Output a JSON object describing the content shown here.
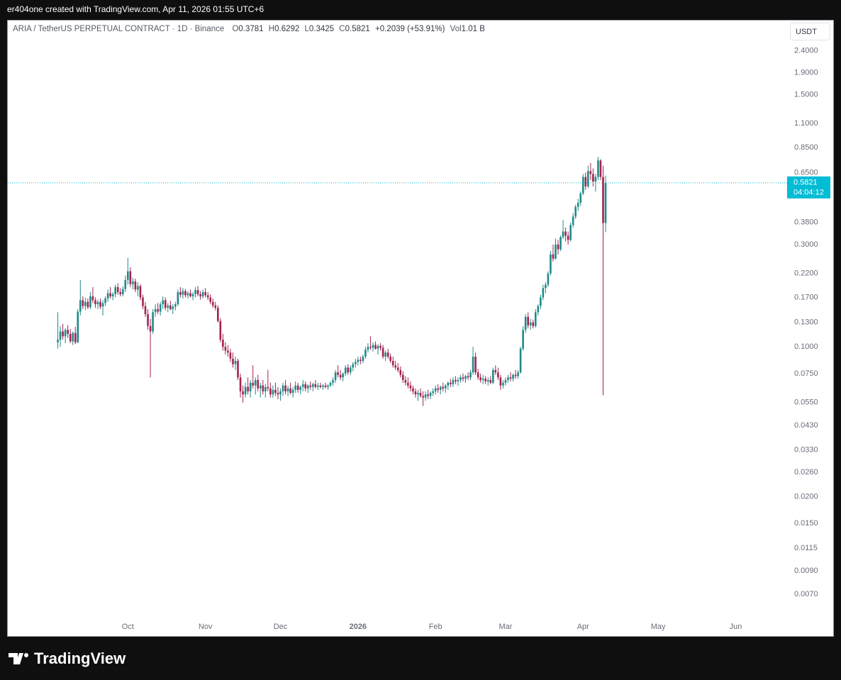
{
  "attribution": "er404one created with TradingView.com, Apr 11, 2026 01:55 UTC+6",
  "footer": {
    "brand": "TradingView"
  },
  "chart_data": {
    "type": "candlestick",
    "title": "ARIA / TetherUS PERPETUAL CONTRACT · 1D · Binance",
    "legend_labels": {
      "open": "O",
      "high": "H",
      "low": "L",
      "close": "C",
      "volume": "Vol"
    },
    "change": "+0.2039 (+53.91%)",
    "volume": "1.01 B",
    "currency": "USDT",
    "countdown": "04:04:12",
    "log_scale": true,
    "grid": false,
    "up_color": "#1f8a8a",
    "down_color": "#a3224f",
    "last_price_color": "#00bcd4",
    "ylim": [
      0.0055,
      3.3
    ],
    "yticks": [
      {
        "value": 2.4,
        "label": "2.4000"
      },
      {
        "value": 1.9,
        "label": "1.9000"
      },
      {
        "value": 1.5,
        "label": "1.5000"
      },
      {
        "value": 1.1,
        "label": "1.1000"
      },
      {
        "value": 0.85,
        "label": "0.8500"
      },
      {
        "value": 0.65,
        "label": "0.6500"
      },
      {
        "value": 0.38,
        "label": "0.3800"
      },
      {
        "value": 0.3,
        "label": "0.3000"
      },
      {
        "value": 0.22,
        "label": "0.2200"
      },
      {
        "value": 0.17,
        "label": "0.1700"
      },
      {
        "value": 0.13,
        "label": "0.1300"
      },
      {
        "value": 0.1,
        "label": "0.1000"
      },
      {
        "value": 0.075,
        "label": "0.0750"
      },
      {
        "value": 0.055,
        "label": "0.0550"
      },
      {
        "value": 0.043,
        "label": "0.0430"
      },
      {
        "value": 0.033,
        "label": "0.0330"
      },
      {
        "value": 0.026,
        "label": "0.0260"
      },
      {
        "value": 0.02,
        "label": "0.0200"
      },
      {
        "value": 0.015,
        "label": "0.0150"
      },
      {
        "value": 0.0115,
        "label": "0.0115"
      },
      {
        "value": 0.009,
        "label": "0.0090"
      },
      {
        "value": 0.007,
        "label": "0.0070"
      }
    ],
    "xlim": [
      -20,
      291
    ],
    "xticks": [
      {
        "value": 28,
        "label": "Oct"
      },
      {
        "value": 59,
        "label": "Nov"
      },
      {
        "value": 89,
        "label": "Dec"
      },
      {
        "value": 120,
        "label": "2026"
      },
      {
        "value": 151,
        "label": "Feb"
      },
      {
        "value": 179,
        "label": "Mar"
      },
      {
        "value": 210,
        "label": "Apr"
      },
      {
        "value": 240,
        "label": "May"
      },
      {
        "value": 271,
        "label": "Jun"
      }
    ],
    "ohlc": [
      [
        0.105,
        0.145,
        0.098,
        0.108
      ],
      [
        0.108,
        0.125,
        0.1,
        0.118
      ],
      [
        0.118,
        0.128,
        0.108,
        0.112
      ],
      [
        0.112,
        0.122,
        0.104,
        0.12
      ],
      [
        0.12,
        0.126,
        0.11,
        0.115
      ],
      [
        0.115,
        0.121,
        0.104,
        0.106
      ],
      [
        0.106,
        0.118,
        0.102,
        0.116
      ],
      [
        0.116,
        0.124,
        0.103,
        0.105
      ],
      [
        0.105,
        0.15,
        0.104,
        0.146
      ],
      [
        0.146,
        0.205,
        0.14,
        0.165
      ],
      [
        0.165,
        0.172,
        0.15,
        0.155
      ],
      [
        0.155,
        0.17,
        0.148,
        0.162
      ],
      [
        0.162,
        0.168,
        0.15,
        0.153
      ],
      [
        0.153,
        0.18,
        0.15,
        0.172
      ],
      [
        0.172,
        0.19,
        0.16,
        0.165
      ],
      [
        0.165,
        0.17,
        0.152,
        0.158
      ],
      [
        0.158,
        0.166,
        0.15,
        0.162
      ],
      [
        0.162,
        0.168,
        0.15,
        0.154
      ],
      [
        0.154,
        0.165,
        0.14,
        0.16
      ],
      [
        0.16,
        0.172,
        0.155,
        0.168
      ],
      [
        0.168,
        0.185,
        0.162,
        0.178
      ],
      [
        0.178,
        0.19,
        0.168,
        0.172
      ],
      [
        0.172,
        0.18,
        0.165,
        0.176
      ],
      [
        0.176,
        0.195,
        0.17,
        0.19
      ],
      [
        0.19,
        0.198,
        0.175,
        0.18
      ],
      [
        0.18,
        0.188,
        0.172,
        0.176
      ],
      [
        0.176,
        0.192,
        0.172,
        0.186
      ],
      [
        0.186,
        0.215,
        0.18,
        0.205
      ],
      [
        0.205,
        0.26,
        0.195,
        0.225
      ],
      [
        0.225,
        0.235,
        0.19,
        0.196
      ],
      [
        0.196,
        0.21,
        0.185,
        0.202
      ],
      [
        0.202,
        0.208,
        0.18,
        0.185
      ],
      [
        0.185,
        0.2,
        0.172,
        0.192
      ],
      [
        0.192,
        0.196,
        0.165,
        0.17
      ],
      [
        0.17,
        0.175,
        0.15,
        0.155
      ],
      [
        0.155,
        0.162,
        0.138,
        0.142
      ],
      [
        0.142,
        0.15,
        0.12,
        0.125
      ],
      [
        0.125,
        0.135,
        0.072,
        0.118
      ],
      [
        0.118,
        0.15,
        0.115,
        0.145
      ],
      [
        0.145,
        0.158,
        0.138,
        0.15
      ],
      [
        0.15,
        0.16,
        0.142,
        0.146
      ],
      [
        0.146,
        0.162,
        0.14,
        0.158
      ],
      [
        0.158,
        0.172,
        0.15,
        0.165
      ],
      [
        0.165,
        0.17,
        0.148,
        0.152
      ],
      [
        0.152,
        0.16,
        0.145,
        0.156
      ],
      [
        0.156,
        0.164,
        0.148,
        0.15
      ],
      [
        0.15,
        0.158,
        0.142,
        0.154
      ],
      [
        0.154,
        0.162,
        0.148,
        0.158
      ],
      [
        0.158,
        0.185,
        0.155,
        0.18
      ],
      [
        0.18,
        0.19,
        0.17,
        0.175
      ],
      [
        0.175,
        0.188,
        0.168,
        0.182
      ],
      [
        0.182,
        0.186,
        0.17,
        0.174
      ],
      [
        0.174,
        0.182,
        0.168,
        0.178
      ],
      [
        0.178,
        0.185,
        0.17,
        0.172
      ],
      [
        0.172,
        0.18,
        0.165,
        0.176
      ],
      [
        0.176,
        0.19,
        0.17,
        0.184
      ],
      [
        0.184,
        0.192,
        0.172,
        0.176
      ],
      [
        0.176,
        0.182,
        0.166,
        0.172
      ],
      [
        0.172,
        0.185,
        0.168,
        0.18
      ],
      [
        0.18,
        0.188,
        0.17,
        0.174
      ],
      [
        0.174,
        0.18,
        0.165,
        0.17
      ],
      [
        0.17,
        0.176,
        0.158,
        0.162
      ],
      [
        0.162,
        0.168,
        0.152,
        0.156
      ],
      [
        0.156,
        0.162,
        0.148,
        0.152
      ],
      [
        0.152,
        0.156,
        0.13,
        0.132
      ],
      [
        0.132,
        0.136,
        0.105,
        0.108
      ],
      [
        0.108,
        0.115,
        0.096,
        0.1
      ],
      [
        0.1,
        0.105,
        0.092,
        0.096
      ],
      [
        0.096,
        0.102,
        0.09,
        0.094
      ],
      [
        0.094,
        0.098,
        0.085,
        0.088
      ],
      [
        0.088,
        0.094,
        0.08,
        0.083
      ],
      [
        0.083,
        0.09,
        0.078,
        0.086
      ],
      [
        0.086,
        0.088,
        0.07,
        0.072
      ],
      [
        0.072,
        0.075,
        0.058,
        0.062
      ],
      [
        0.062,
        0.066,
        0.055,
        0.06
      ],
      [
        0.06,
        0.068,
        0.058,
        0.065
      ],
      [
        0.065,
        0.072,
        0.06,
        0.062
      ],
      [
        0.062,
        0.07,
        0.058,
        0.068
      ],
      [
        0.068,
        0.082,
        0.064,
        0.066
      ],
      [
        0.066,
        0.072,
        0.06,
        0.07
      ],
      [
        0.07,
        0.074,
        0.062,
        0.064
      ],
      [
        0.064,
        0.068,
        0.058,
        0.066
      ],
      [
        0.066,
        0.07,
        0.06,
        0.062
      ],
      [
        0.062,
        0.067,
        0.058,
        0.065
      ],
      [
        0.065,
        0.078,
        0.062,
        0.064
      ],
      [
        0.064,
        0.068,
        0.058,
        0.06
      ],
      [
        0.06,
        0.066,
        0.058,
        0.063
      ],
      [
        0.063,
        0.068,
        0.059,
        0.061
      ],
      [
        0.061,
        0.065,
        0.057,
        0.06
      ],
      [
        0.06,
        0.064,
        0.056,
        0.062
      ],
      [
        0.062,
        0.068,
        0.059,
        0.066
      ],
      [
        0.066,
        0.07,
        0.06,
        0.062
      ],
      [
        0.062,
        0.066,
        0.059,
        0.064
      ],
      [
        0.064,
        0.068,
        0.06,
        0.061
      ],
      [
        0.061,
        0.065,
        0.058,
        0.063
      ],
      [
        0.063,
        0.069,
        0.061,
        0.066
      ],
      [
        0.066,
        0.068,
        0.061,
        0.063
      ],
      [
        0.063,
        0.066,
        0.06,
        0.065
      ],
      [
        0.065,
        0.07,
        0.062,
        0.067
      ],
      [
        0.067,
        0.069,
        0.062,
        0.064
      ],
      [
        0.064,
        0.067,
        0.061,
        0.066
      ],
      [
        0.066,
        0.069,
        0.063,
        0.065
      ],
      [
        0.065,
        0.068,
        0.062,
        0.067
      ],
      [
        0.067,
        0.07,
        0.064,
        0.065
      ],
      [
        0.065,
        0.068,
        0.063,
        0.066
      ],
      [
        0.066,
        0.068,
        0.064,
        0.065
      ],
      [
        0.065,
        0.067,
        0.063,
        0.066
      ],
      [
        0.066,
        0.068,
        0.064,
        0.065
      ],
      [
        0.065,
        0.067,
        0.063,
        0.066
      ],
      [
        0.066,
        0.069,
        0.065,
        0.068
      ],
      [
        0.068,
        0.072,
        0.066,
        0.07
      ],
      [
        0.07,
        0.078,
        0.068,
        0.076
      ],
      [
        0.076,
        0.082,
        0.072,
        0.074
      ],
      [
        0.074,
        0.078,
        0.07,
        0.072
      ],
      [
        0.072,
        0.076,
        0.069,
        0.075
      ],
      [
        0.075,
        0.082,
        0.073,
        0.08
      ],
      [
        0.08,
        0.083,
        0.074,
        0.076
      ],
      [
        0.076,
        0.082,
        0.074,
        0.08
      ],
      [
        0.08,
        0.085,
        0.077,
        0.083
      ],
      [
        0.083,
        0.088,
        0.08,
        0.085
      ],
      [
        0.085,
        0.09,
        0.082,
        0.087
      ],
      [
        0.087,
        0.09,
        0.083,
        0.086
      ],
      [
        0.086,
        0.092,
        0.084,
        0.09
      ],
      [
        0.09,
        0.1,
        0.088,
        0.097
      ],
      [
        0.097,
        0.104,
        0.094,
        0.1
      ],
      [
        0.1,
        0.112,
        0.097,
        0.099
      ],
      [
        0.099,
        0.105,
        0.095,
        0.102
      ],
      [
        0.102,
        0.106,
        0.097,
        0.098
      ],
      [
        0.098,
        0.103,
        0.092,
        0.101
      ],
      [
        0.101,
        0.104,
        0.096,
        0.099
      ],
      [
        0.099,
        0.102,
        0.088,
        0.09
      ],
      [
        0.09,
        0.096,
        0.086,
        0.094
      ],
      [
        0.094,
        0.098,
        0.088,
        0.09
      ],
      [
        0.09,
        0.093,
        0.084,
        0.086
      ],
      [
        0.086,
        0.09,
        0.08,
        0.082
      ],
      [
        0.082,
        0.086,
        0.078,
        0.08
      ],
      [
        0.08,
        0.084,
        0.076,
        0.078
      ],
      [
        0.078,
        0.081,
        0.072,
        0.074
      ],
      [
        0.074,
        0.077,
        0.068,
        0.07
      ],
      [
        0.07,
        0.073,
        0.066,
        0.068
      ],
      [
        0.068,
        0.072,
        0.064,
        0.066
      ],
      [
        0.066,
        0.069,
        0.062,
        0.064
      ],
      [
        0.064,
        0.066,
        0.06,
        0.062
      ],
      [
        0.062,
        0.064,
        0.058,
        0.06
      ],
      [
        0.06,
        0.063,
        0.056,
        0.061
      ],
      [
        0.061,
        0.064,
        0.058,
        0.059
      ],
      [
        0.059,
        0.062,
        0.053,
        0.058
      ],
      [
        0.058,
        0.062,
        0.056,
        0.06
      ],
      [
        0.06,
        0.063,
        0.057,
        0.059
      ],
      [
        0.059,
        0.062,
        0.057,
        0.061
      ],
      [
        0.061,
        0.064,
        0.059,
        0.062
      ],
      [
        0.062,
        0.066,
        0.06,
        0.064
      ],
      [
        0.064,
        0.067,
        0.061,
        0.063
      ],
      [
        0.063,
        0.066,
        0.06,
        0.065
      ],
      [
        0.065,
        0.068,
        0.062,
        0.064
      ],
      [
        0.064,
        0.067,
        0.061,
        0.066
      ],
      [
        0.066,
        0.069,
        0.063,
        0.068
      ],
      [
        0.068,
        0.071,
        0.065,
        0.067
      ],
      [
        0.067,
        0.072,
        0.065,
        0.07
      ],
      [
        0.07,
        0.073,
        0.067,
        0.069
      ],
      [
        0.069,
        0.072,
        0.066,
        0.07
      ],
      [
        0.07,
        0.074,
        0.068,
        0.072
      ],
      [
        0.072,
        0.075,
        0.069,
        0.071
      ],
      [
        0.071,
        0.074,
        0.068,
        0.073
      ],
      [
        0.073,
        0.076,
        0.07,
        0.072
      ],
      [
        0.072,
        0.078,
        0.07,
        0.076
      ],
      [
        0.076,
        0.1,
        0.074,
        0.09
      ],
      [
        0.09,
        0.094,
        0.074,
        0.076
      ],
      [
        0.076,
        0.079,
        0.07,
        0.072
      ],
      [
        0.072,
        0.075,
        0.068,
        0.07
      ],
      [
        0.07,
        0.074,
        0.067,
        0.071
      ],
      [
        0.071,
        0.073,
        0.067,
        0.069
      ],
      [
        0.069,
        0.072,
        0.066,
        0.07
      ],
      [
        0.07,
        0.073,
        0.067,
        0.068
      ],
      [
        0.068,
        0.08,
        0.067,
        0.078
      ],
      [
        0.078,
        0.082,
        0.074,
        0.076
      ],
      [
        0.076,
        0.08,
        0.07,
        0.072
      ],
      [
        0.072,
        0.074,
        0.063,
        0.066
      ],
      [
        0.066,
        0.07,
        0.064,
        0.068
      ],
      [
        0.068,
        0.072,
        0.066,
        0.07
      ],
      [
        0.07,
        0.074,
        0.068,
        0.072
      ],
      [
        0.072,
        0.076,
        0.069,
        0.071
      ],
      [
        0.071,
        0.075,
        0.069,
        0.074
      ],
      [
        0.074,
        0.078,
        0.071,
        0.073
      ],
      [
        0.073,
        0.078,
        0.071,
        0.076
      ],
      [
        0.076,
        0.1,
        0.075,
        0.098
      ],
      [
        0.098,
        0.125,
        0.096,
        0.12
      ],
      [
        0.12,
        0.142,
        0.116,
        0.138
      ],
      [
        0.138,
        0.145,
        0.122,
        0.126
      ],
      [
        0.126,
        0.135,
        0.12,
        0.13
      ],
      [
        0.13,
        0.134,
        0.122,
        0.125
      ],
      [
        0.125,
        0.15,
        0.123,
        0.145
      ],
      [
        0.145,
        0.158,
        0.14,
        0.155
      ],
      [
        0.155,
        0.175,
        0.15,
        0.17
      ],
      [
        0.17,
        0.195,
        0.165,
        0.188
      ],
      [
        0.188,
        0.2,
        0.178,
        0.195
      ],
      [
        0.195,
        0.225,
        0.19,
        0.22
      ],
      [
        0.22,
        0.28,
        0.215,
        0.27
      ],
      [
        0.27,
        0.3,
        0.25,
        0.258
      ],
      [
        0.258,
        0.32,
        0.255,
        0.3
      ],
      [
        0.3,
        0.315,
        0.27,
        0.285
      ],
      [
        0.285,
        0.33,
        0.28,
        0.325
      ],
      [
        0.325,
        0.39,
        0.318,
        0.345
      ],
      [
        0.345,
        0.36,
        0.31,
        0.33
      ],
      [
        0.33,
        0.345,
        0.3,
        0.315
      ],
      [
        0.315,
        0.38,
        0.31,
        0.37
      ],
      [
        0.37,
        0.42,
        0.36,
        0.405
      ],
      [
        0.405,
        0.46,
        0.395,
        0.45
      ],
      [
        0.45,
        0.49,
        0.43,
        0.47
      ],
      [
        0.47,
        0.53,
        0.455,
        0.52
      ],
      [
        0.52,
        0.64,
        0.51,
        0.62
      ],
      [
        0.62,
        0.65,
        0.54,
        0.56
      ],
      [
        0.56,
        0.7,
        0.55,
        0.66
      ],
      [
        0.66,
        0.72,
        0.6,
        0.64
      ],
      [
        0.64,
        0.68,
        0.56,
        0.59
      ],
      [
        0.59,
        0.64,
        0.53,
        0.62
      ],
      [
        0.62,
        0.77,
        0.6,
        0.74
      ],
      [
        0.74,
        0.75,
        0.6,
        0.62
      ],
      [
        0.62,
        0.7,
        0.0595,
        0.3781
      ],
      [
        0.3781,
        0.6292,
        0.3425,
        0.5821
      ]
    ]
  }
}
